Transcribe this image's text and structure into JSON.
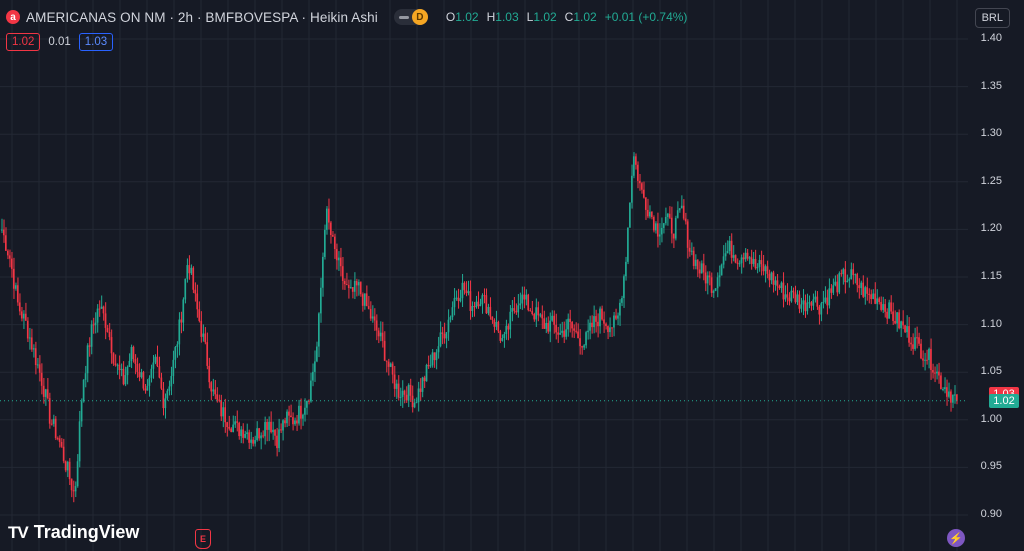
{
  "header": {
    "symbol_icon": "a",
    "title": "AMERICANAS ON NM · 2h · BMFBOVESPA · Heikin Ashi",
    "toggle_badge": "D",
    "ohlc": {
      "o_label": "O",
      "o": "1.02",
      "h_label": "H",
      "h": "1.03",
      "l_label": "L",
      "l": "1.02",
      "c_label": "C",
      "c": "1.02",
      "change": "+0.01 (+0.74%)"
    }
  },
  "subrow": {
    "bid": "1.02",
    "spread": "0.01",
    "ask": "1.03"
  },
  "currency_button": "BRL",
  "price_tags": {
    "last": "1.03",
    "current": "1.02"
  },
  "brand": {
    "logo": "TV",
    "name": "TradingView"
  },
  "icons": {
    "earnings": "E",
    "bolt": "⚡"
  },
  "colors": {
    "up": "#22ab94",
    "down": "#f23645",
    "background": "#161a25",
    "grid": "#232834"
  },
  "chart_data": {
    "type": "candlestick",
    "series_name": "AMERICANAS ON NM",
    "y_ticks": [
      "1.40",
      "1.35",
      "1.30",
      "1.25",
      "1.20",
      "1.15",
      "1.10",
      "1.05",
      "1.00",
      "0.95",
      "0.90"
    ],
    "ylim": [
      0.9,
      1.4
    ],
    "grid": true,
    "close_anchors": [
      1.2,
      1.17,
      1.12,
      1.1,
      1.07,
      1.04,
      1.0,
      0.98,
      0.95,
      0.92,
      1.04,
      1.09,
      1.12,
      1.1,
      1.06,
      1.04,
      1.07,
      1.05,
      1.03,
      1.06,
      1.02,
      1.05,
      1.1,
      1.17,
      1.12,
      1.08,
      1.03,
      1.01,
      1.0,
      0.99,
      0.99,
      0.98,
      0.99,
      1.0,
      0.98,
      1.0,
      1.0,
      1.01,
      1.03,
      1.08,
      1.22,
      1.18,
      1.15,
      1.13,
      1.14,
      1.12,
      1.1,
      1.08,
      1.05,
      1.03,
      1.03,
      1.02,
      1.04,
      1.06,
      1.08,
      1.1,
      1.13,
      1.14,
      1.12,
      1.13,
      1.12,
      1.1,
      1.08,
      1.11,
      1.13,
      1.12,
      1.11,
      1.1,
      1.1,
      1.09,
      1.1,
      1.09,
      1.08,
      1.1,
      1.11,
      1.1,
      1.1,
      1.16,
      1.28,
      1.24,
      1.22,
      1.2,
      1.21,
      1.2,
      1.22,
      1.18,
      1.16,
      1.15,
      1.14,
      1.17,
      1.18,
      1.17,
      1.18,
      1.16,
      1.16,
      1.15,
      1.14,
      1.13,
      1.13,
      1.12,
      1.13,
      1.12,
      1.13,
      1.14,
      1.15,
      1.15,
      1.14,
      1.13,
      1.13,
      1.12,
      1.11,
      1.1,
      1.09,
      1.08,
      1.07,
      1.06,
      1.04,
      1.03,
      1.02
    ],
    "last_price": 1.02,
    "previous_price": 1.03
  }
}
